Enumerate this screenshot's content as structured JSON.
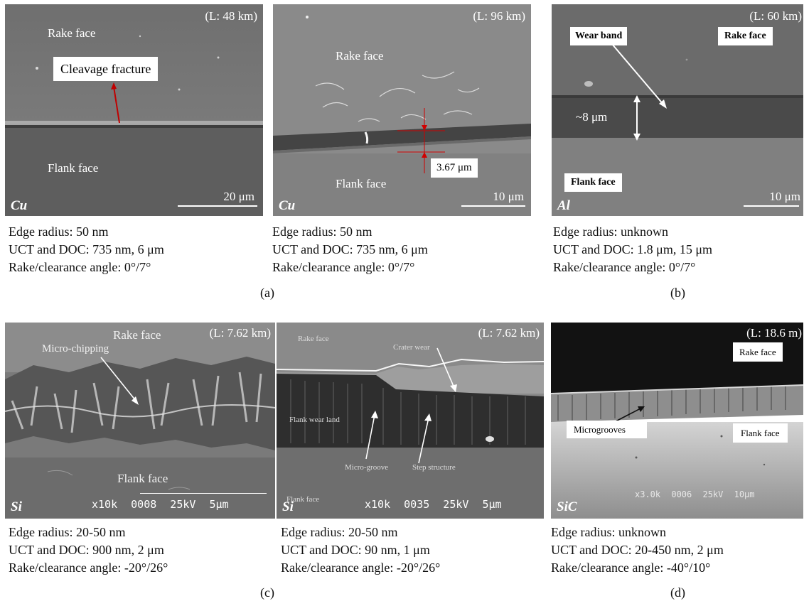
{
  "panels": [
    {
      "length": "(L: 48 km)",
      "material": "Cu",
      "rake_label": "Rake face",
      "flank_label": "Flank face",
      "feature_label": "Cleavage fracture",
      "scale": "20 μm"
    },
    {
      "length": "(L: 96 km)",
      "material": "Cu",
      "rake_label": "Rake face",
      "flank_label": "Flank face",
      "measure_label": "3.67 μm",
      "scale": "10 μm"
    },
    {
      "length": "(L: 60 km)",
      "material": "Al",
      "rake_label": "Rake face",
      "flank_label": "Flank face",
      "feature_label": "Wear band",
      "measure_label": "~8 μm",
      "scale": "10 μm"
    },
    {
      "length": "(L: 7.62 km)",
      "material": "Si",
      "rake_label": "Rake face",
      "flank_label": "Flank face",
      "feature_label": "Micro-chipping",
      "sem_info": "x10k 0008 25kV 5μm"
    },
    {
      "length": "(L: 7.62 km)",
      "material": "Si",
      "rake_label": "Rake face",
      "flank_label": "Flank face",
      "crater_label": "Crater wear",
      "flank_wear_label": "Flank wear land",
      "microgroove_label": "Micro-groove",
      "step_label": "Step structure",
      "sem_info": "x10k 0035 25kV 5μm"
    },
    {
      "length": "(L: 18.6 m)",
      "material": "SiC",
      "rake_label": "Rake face",
      "flank_label": "Flank face",
      "feature_label": "Microgrooves",
      "sem_info": "x3.0k 0006 25kV 10μm"
    }
  ],
  "captions": [
    {
      "edge": "Edge radius: 50 nm",
      "uct": "UCT and DOC: 735 nm, 6 μm",
      "angle": "Rake/clearance angle: 0°/7°"
    },
    {
      "edge": "Edge radius: 50 nm",
      "uct": "UCT and DOC: 735 nm, 6 μm",
      "angle": "Rake/clearance angle: 0°/7°"
    },
    {
      "edge": "Edge radius: unknown",
      "uct": "UCT and DOC: 1.8 μm, 15 μm",
      "angle": "Rake/clearance angle: 0°/7°"
    },
    {
      "edge": "Edge radius: 20-50 nm",
      "uct": "UCT and DOC: 900 nm, 2 μm",
      "angle": "Rake/clearance angle: -20°/26°"
    },
    {
      "edge": "Edge radius: 20-50 nm",
      "uct": "UCT and DOC: 90 nm, 1 μm",
      "angle": "Rake/clearance angle: -20°/26°"
    },
    {
      "edge": "Edge radius: unknown",
      "uct": "UCT and DOC: 20-450 nm, 2 μm",
      "angle": "Rake/clearance angle: -40°/10°"
    }
  ],
  "figure_labels": [
    "(a)",
    "(b)",
    "(c)",
    "(d)"
  ]
}
